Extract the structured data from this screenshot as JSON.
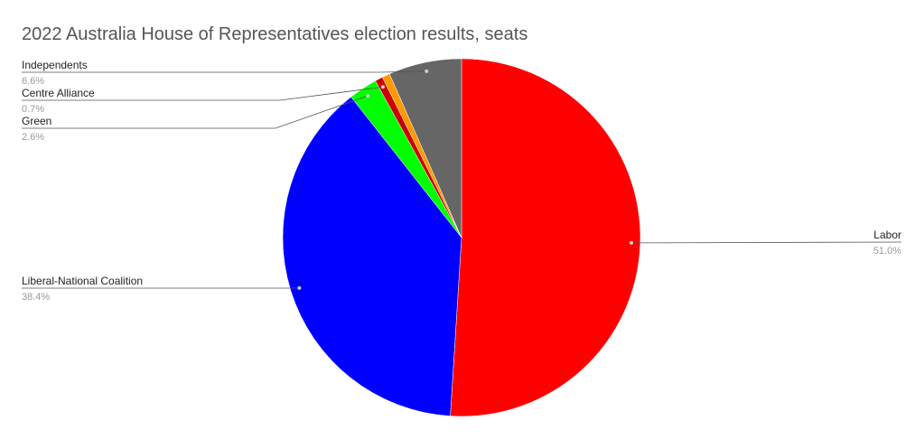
{
  "chart_data": {
    "type": "pie",
    "title": "2022 Australia House of Representatives election results, seats",
    "categories": [
      "Labor",
      "Liberal-National Coalition",
      "Green",
      "Centre Alliance",
      null,
      "Independents"
    ],
    "values": [
      51.0,
      38.4,
      2.6,
      0.7,
      0.7,
      6.6
    ],
    "value_labels": [
      "51.0%",
      "38.4%",
      "2.6%",
      "0.7%",
      null,
      "6.6%"
    ],
    "colors": [
      "#ff0000",
      "#0000ff",
      "#00ff00",
      "#cc0000",
      "#ff9900",
      "#666666"
    ]
  }
}
